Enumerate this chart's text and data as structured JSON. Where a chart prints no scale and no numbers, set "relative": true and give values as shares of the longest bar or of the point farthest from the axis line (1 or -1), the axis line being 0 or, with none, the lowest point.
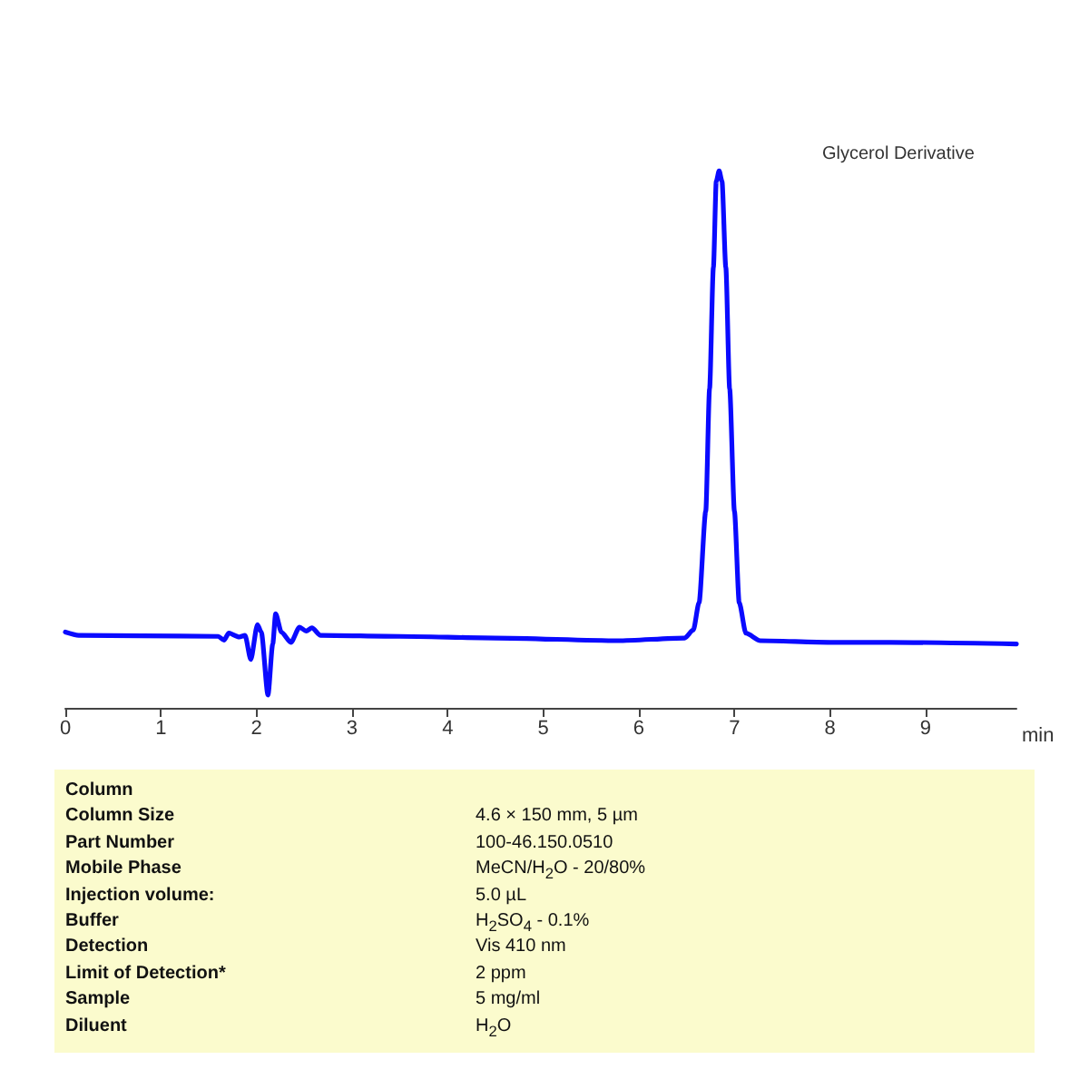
{
  "chart_data": {
    "type": "line",
    "title": "Glycerol Derivative",
    "xlabel": "min",
    "relative": true,
    "color": "#0a0aff",
    "x": [
      0,
      0.14,
      0.8,
      1.6,
      1.66,
      1.71,
      1.82,
      1.88,
      1.94,
      2.01,
      2.05,
      2.12,
      2.17,
      2.2,
      2.26,
      2.36,
      2.45,
      2.52,
      2.58,
      2.67,
      3.5,
      4.5,
      5.78,
      6.48,
      6.57,
      6.63,
      6.7,
      6.74,
      6.78,
      6.81,
      6.84,
      6.87,
      6.91,
      6.95,
      7.0,
      7.05,
      7.12,
      7.27,
      8.0,
      8.63,
      9.95
    ],
    "values": [
      0.141,
      0.135,
      0.134,
      0.133,
      0.126,
      0.139,
      0.132,
      0.135,
      0.09,
      0.155,
      0.141,
      0.024,
      0.119,
      0.175,
      0.141,
      0.122,
      0.15,
      0.143,
      0.149,
      0.135,
      0.133,
      0.13,
      0.125,
      0.13,
      0.145,
      0.196,
      0.366,
      0.594,
      0.82,
      0.98,
      1,
      0.98,
      0.82,
      0.594,
      0.366,
      0.196,
      0.139,
      0.125,
      0.122,
      0.122,
      0.119
    ],
    "xlim": [
      0,
      9.95
    ],
    "xticks": [
      0,
      1,
      2,
      3,
      4,
      5,
      6,
      7,
      8,
      9
    ],
    "annotations": [
      "Column",
      "Column Size",
      "Part Number",
      "Mobile Phase",
      "Injection volume:",
      "Buffer",
      "Detection",
      "Limit of Detection*",
      "Sample",
      "Diluent",
      "4.6 × 150 mm, 5 µm",
      "100-46.150.0510",
      "MeCN/H$_{2}$O - 20/80%",
      "5.0 µL",
      "H$_{2}$SO$_{4}$ - 0.1%",
      "Vis 410 nm",
      "2 ppm",
      "5 mg/ml",
      "H$_{2}$O"
    ]
  }
}
